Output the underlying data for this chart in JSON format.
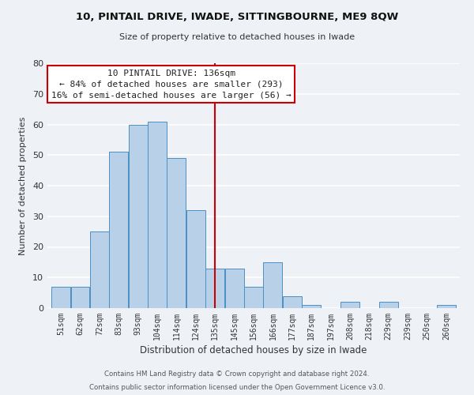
{
  "title": "10, PINTAIL DRIVE, IWADE, SITTINGBOURNE, ME9 8QW",
  "subtitle": "Size of property relative to detached houses in Iwade",
  "xlabel": "Distribution of detached houses by size in Iwade",
  "ylabel": "Number of detached properties",
  "bar_labels": [
    "51sqm",
    "62sqm",
    "72sqm",
    "83sqm",
    "93sqm",
    "104sqm",
    "114sqm",
    "124sqm",
    "135sqm",
    "145sqm",
    "156sqm",
    "166sqm",
    "177sqm",
    "187sqm",
    "197sqm",
    "208sqm",
    "218sqm",
    "229sqm",
    "239sqm",
    "250sqm",
    "260sqm"
  ],
  "bar_values": [
    7,
    7,
    25,
    51,
    60,
    61,
    49,
    32,
    13,
    13,
    7,
    15,
    4,
    1,
    0,
    2,
    0,
    2,
    0,
    0,
    1
  ],
  "bar_color": "#b8d0e8",
  "bar_edge_color": "#4a90c4",
  "vline_x": 8,
  "vline_color": "#cc0000",
  "ylim": [
    0,
    80
  ],
  "yticks": [
    0,
    10,
    20,
    30,
    40,
    50,
    60,
    70,
    80
  ],
  "annotation_title": "10 PINTAIL DRIVE: 136sqm",
  "annotation_line1": "← 84% of detached houses are smaller (293)",
  "annotation_line2": "16% of semi-detached houses are larger (56) →",
  "annotation_box_color": "#ffffff",
  "annotation_box_edge": "#cc0000",
  "background_color": "#eef2f7",
  "footer1": "Contains HM Land Registry data © Crown copyright and database right 2024.",
  "footer2": "Contains public sector information licensed under the Open Government Licence v3.0."
}
